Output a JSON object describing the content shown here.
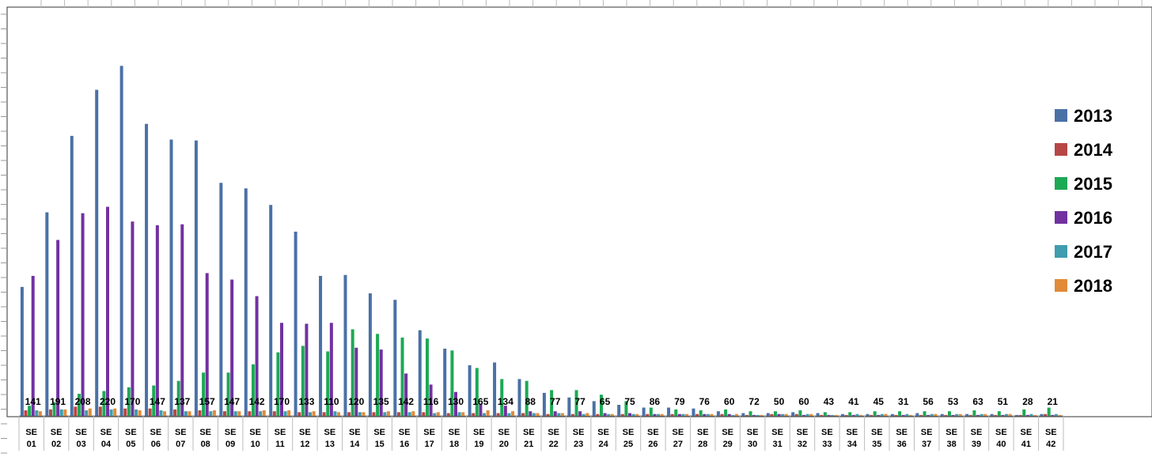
{
  "chart_data": {
    "type": "bar",
    "title": "",
    "xlabel": "",
    "ylabel": "",
    "ylim": [
      0,
      2000
    ],
    "grid": false,
    "legend_position": "right",
    "categories": [
      "SE 01",
      "SE 02",
      "SE 03",
      "SE 04",
      "SE 05",
      "SE 06",
      "SE 07",
      "SE 08",
      "SE 09",
      "SE 10",
      "SE 11",
      "SE 12",
      "SE 13",
      "SE 14",
      "SE 15",
      "SE 16",
      "SE 17",
      "SE 18",
      "SE 19",
      "SE 20",
      "SE 21",
      "SE 22",
      "SE 23",
      "SE 24",
      "SE 25",
      "SE 26",
      "SE 27",
      "SE 28",
      "SE 29",
      "SE 30",
      "SE 31",
      "SE 32",
      "SE 33",
      "SE 34",
      "SE 35",
      "SE 36",
      "SE 37",
      "SE 38",
      "SE 39",
      "SE 40",
      "SE 41",
      "SE 42"
    ],
    "series": [
      {
        "name": "2013",
        "color": "#4a71a6",
        "values": [
          700,
          1105,
          1520,
          1770,
          1900,
          1585,
          1500,
          1495,
          1265,
          1235,
          1145,
          1000,
          760,
          765,
          665,
          630,
          465,
          365,
          275,
          290,
          200,
          125,
          100,
          80,
          60,
          45,
          45,
          40,
          25,
          15,
          15,
          20,
          15,
          10,
          10,
          10,
          15,
          10,
          10,
          10,
          5,
          10
        ]
      },
      {
        "name": "2014",
        "color": "#b74744",
        "values": [
          30,
          35,
          50,
          50,
          40,
          40,
          35,
          30,
          25,
          25,
          25,
          20,
          20,
          20,
          20,
          20,
          20,
          15,
          15,
          15,
          15,
          10,
          10,
          10,
          10,
          10,
          10,
          10,
          10,
          5,
          10,
          10,
          5,
          5,
          5,
          5,
          5,
          5,
          5,
          5,
          5,
          10
        ]
      },
      {
        "name": "2015",
        "color": "#1ca954",
        "values": [
          55,
          75,
          120,
          135,
          155,
          165,
          190,
          235,
          235,
          280,
          345,
          380,
          350,
          470,
          445,
          425,
          420,
          355,
          260,
          200,
          190,
          140,
          140,
          115,
          80,
          45,
          35,
          30,
          35,
          25,
          25,
          30,
          20,
          20,
          25,
          25,
          25,
          25,
          30,
          25,
          35,
          45
        ]
      },
      {
        "name": "2016",
        "color": "#7131a0",
        "values": [
          760,
          955,
          1100,
          1135,
          1055,
          1035,
          1040,
          775,
          740,
          650,
          505,
          500,
          505,
          370,
          360,
          230,
          170,
          130,
          65,
          55,
          25,
          25,
          25,
          15,
          15,
          10,
          10,
          10,
          10,
          5,
          10,
          5,
          5,
          5,
          5,
          5,
          5,
          5,
          5,
          5,
          5,
          5
        ]
      },
      {
        "name": "2017",
        "color": "#3e9dae",
        "values": [
          30,
          35,
          30,
          35,
          35,
          30,
          25,
          25,
          25,
          25,
          25,
          20,
          25,
          20,
          20,
          20,
          15,
          20,
          15,
          15,
          15,
          15,
          10,
          10,
          10,
          10,
          10,
          10,
          5,
          5,
          10,
          10,
          5,
          10,
          10,
          10,
          10,
          10,
          10,
          10,
          10,
          10
        ]
      },
      {
        "name": "2018",
        "color": "#e18a37",
        "values": [
          25,
          35,
          40,
          40,
          30,
          25,
          25,
          30,
          25,
          30,
          30,
          25,
          20,
          20,
          25,
          25,
          20,
          20,
          30,
          25,
          15,
          15,
          15,
          10,
          10,
          10,
          10,
          10,
          10,
          5,
          10,
          10,
          5,
          5,
          10,
          5,
          10,
          10,
          10,
          10,
          5,
          5
        ]
      }
    ],
    "data_labels": [
      141,
      191,
      208,
      220,
      170,
      147,
      137,
      157,
      147,
      142,
      170,
      133,
      110,
      120,
      135,
      142,
      116,
      130,
      165,
      134,
      88,
      77,
      77,
      65,
      75,
      86,
      79,
      76,
      60,
      72,
      50,
      60,
      43,
      41,
      45,
      31,
      56,
      53,
      63,
      51,
      28,
      21
    ]
  }
}
